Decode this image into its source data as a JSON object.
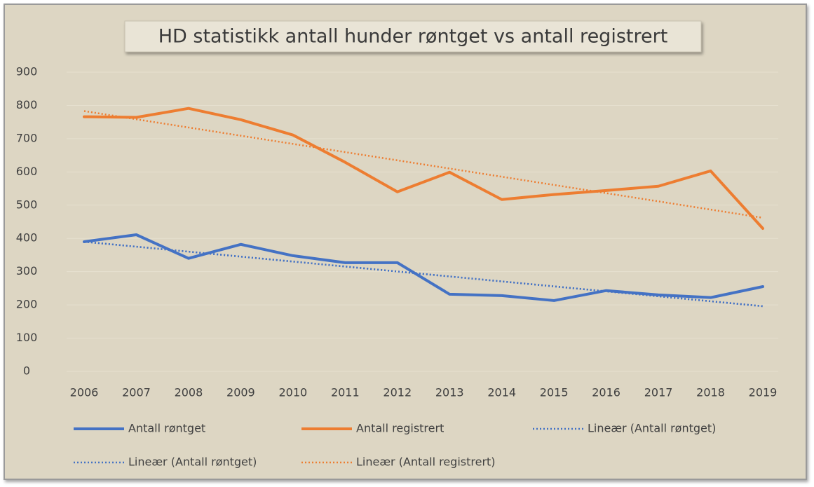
{
  "chart_data": {
    "type": "line",
    "title": "HD statistikk antall hunder røntget vs antall registrert",
    "categories": [
      "2006",
      "2007",
      "2008",
      "2009",
      "2010",
      "2011",
      "2012",
      "2013",
      "2014",
      "2015",
      "2016",
      "2017",
      "2018",
      "2019"
    ],
    "series": [
      {
        "name": "Antall røntget",
        "color": "#4472c4",
        "values": [
          390,
          411,
          340,
          382,
          348,
          327,
          327,
          232,
          228,
          213,
          243,
          230,
          222,
          255
        ]
      },
      {
        "name": "Antall registrert",
        "color": "#ed7d31",
        "values": [
          766,
          764,
          791,
          757,
          711,
          629,
          540,
          599,
          517,
          532,
          544,
          557,
          603,
          430
        ]
      }
    ],
    "trendlines": [
      {
        "name": "Lineær (Antall røntget)",
        "color": "#4472c4",
        "values": [
          390,
          196
        ]
      },
      {
        "name": "Lineær (Antall røntget)",
        "color": "#4472c4",
        "values": [
          390,
          196
        ]
      },
      {
        "name": "Lineær (Antall registrert)",
        "color": "#ed7d31",
        "values": [
          783,
          462
        ]
      }
    ],
    "ylim": [
      0,
      900
    ],
    "yticks": [
      0,
      100,
      200,
      300,
      400,
      500,
      600,
      700,
      800,
      900
    ],
    "grid": true
  }
}
